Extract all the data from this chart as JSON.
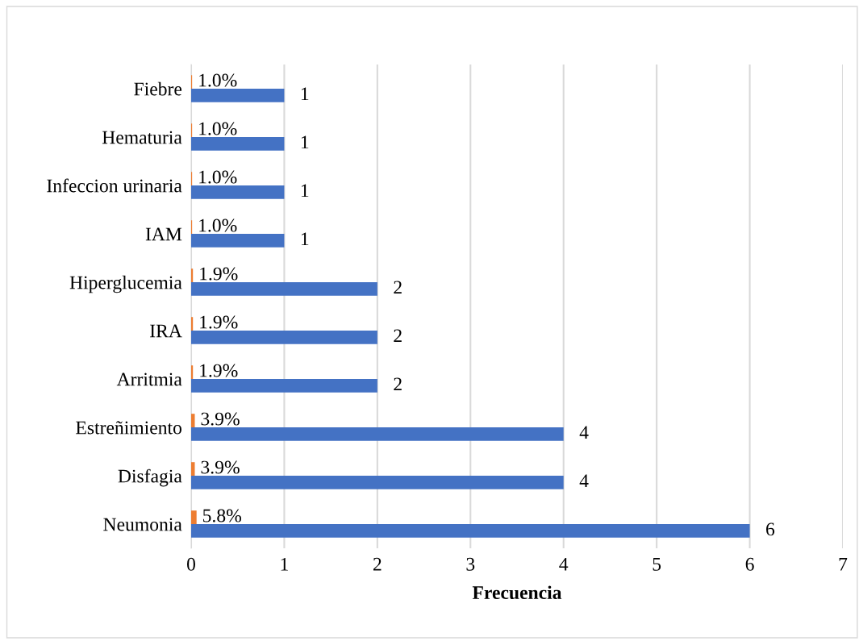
{
  "chart_data": {
    "type": "bar",
    "orientation": "horizontal",
    "xlabel": "Frecuencia",
    "categories": [
      "Fiebre",
      "Hematuria",
      "Infeccion urinaria",
      "IAM",
      "Hiperglucemia",
      "IRA",
      "Arritmia",
      "Estreñimiento",
      "Disfagia",
      "Neumonia"
    ],
    "series": [
      {
        "color": "#4472c4",
        "values": [
          1,
          1,
          1,
          1,
          2,
          2,
          2,
          4,
          4,
          6
        ],
        "value_labels": [
          "1",
          "1",
          "1",
          "1",
          "2",
          "2",
          "2",
          "4",
          "4",
          "6"
        ]
      },
      {
        "color": "#ed7d31",
        "values": [
          0.01,
          0.01,
          0.01,
          0.01,
          0.019,
          0.019,
          0.019,
          0.039,
          0.039,
          0.058
        ],
        "value_labels": [
          "1.0%",
          "1.0%",
          "1.0%",
          "1.0%",
          "1.9%",
          "1.9%",
          "1.9%",
          "3.9%",
          "3.9%",
          "5.8%"
        ]
      }
    ],
    "xlim": [
      0,
      7
    ],
    "xticks": [
      0,
      1,
      2,
      3,
      4,
      5,
      6,
      7
    ],
    "grid": "x",
    "legend": false
  }
}
